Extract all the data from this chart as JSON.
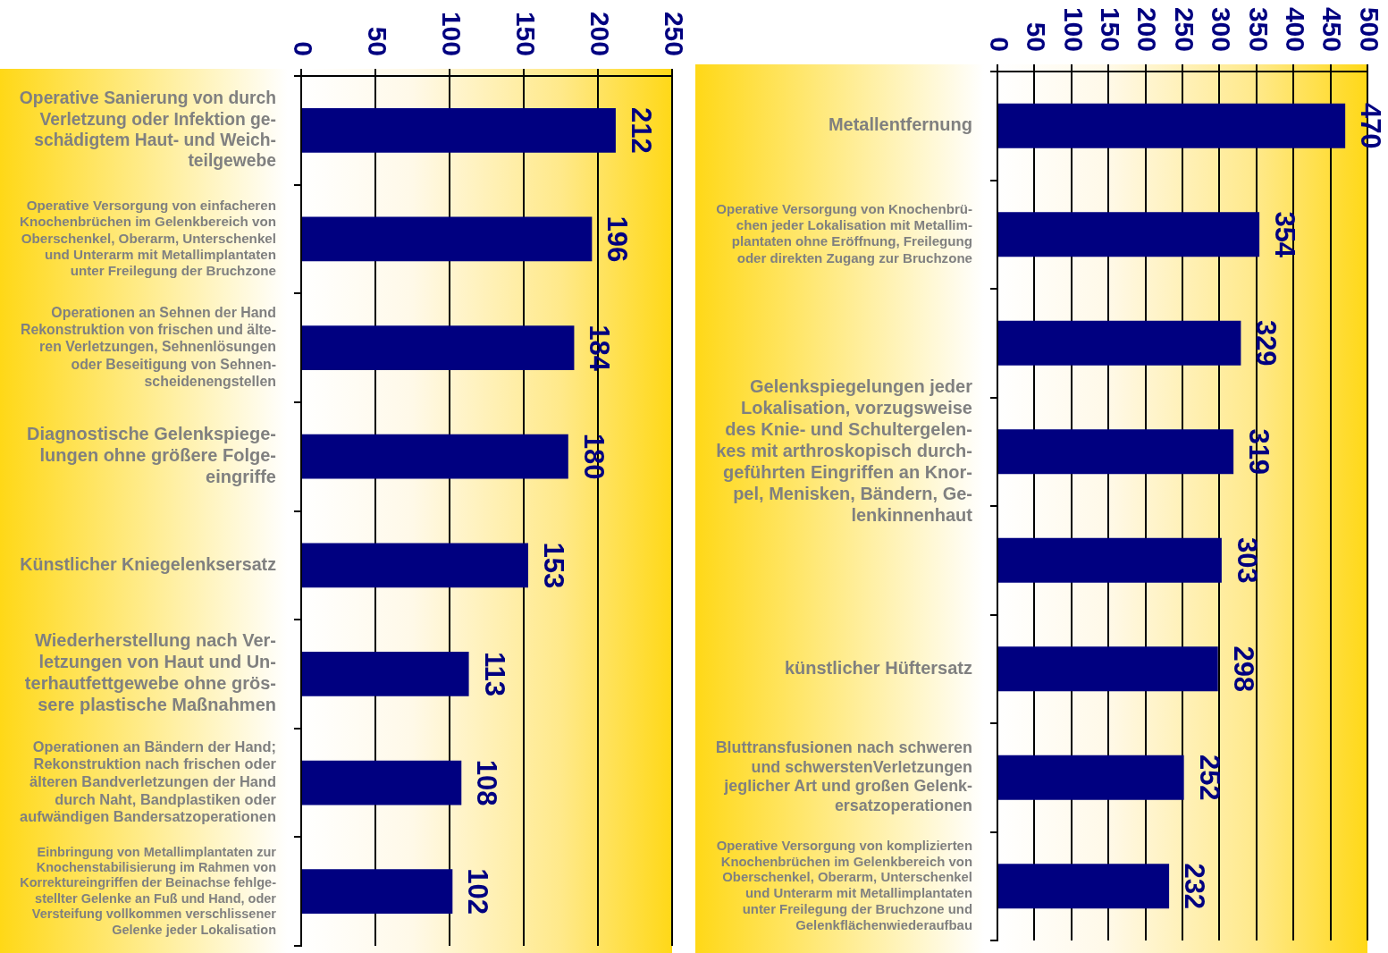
{
  "chart_data": [
    {
      "type": "bar",
      "orientation": "horizontal",
      "categories": [
        "Operative Sanierung von durch\nVerletzung oder Infektion ge-\nschädigtem Haut- und Weich-\nteilgewebe",
        "Operative Versorgung von einfacheren\nKnochenbrüchen im Gelenkbereich von\nOberschenkel, Oberarm, Unterschenkel\nund Unterarm mit Metallimplantaten\nunter Freilegung der Bruchzone",
        "Operationen an Sehnen der Hand\nRekonstruktion von frischen und älte-\nren Verletzungen, Sehnenlösungen\noder Beseitigung von Sehnen-\nscheidenengstellen",
        "Diagnostische Gelenkspiege-\nlungen ohne größere Folge-\neingriffe",
        "Künstlicher Kniegelenksersatz",
        "Wiederherstellung nach Ver-\nletzungen von Haut und Un-\nterhautfettgewebe ohne grös-\nsere plastische Maßnahmen",
        "Operationen an Bändern der Hand;\nRekonstruktion nach frischen oder\nälteren Bandverletzungen der Hand\ndurch Naht, Bandplastiken oder\naufwändigen Bandersatzoperationen",
        "Einbringung von Metallimplantaten zur\nKnochenstabilisierung im Rahmen von\nKorrektureingriffen der Beinachse fehlge-\nstellter Gelenke an Fuß und Hand, oder\nVersteifung vollkommen verschlissener\nGelenke jeder Lokalisation"
      ],
      "values": [
        212,
        196,
        184,
        180,
        153,
        113,
        108,
        102
      ],
      "color": "#000080",
      "xlim": [
        0,
        250
      ],
      "xticks": [
        0,
        50,
        100,
        150,
        200,
        250
      ],
      "grid": "x",
      "data_labels": true
    },
    {
      "type": "bar",
      "orientation": "horizontal",
      "categories": [
        "Metallentfernung",
        "Operative Versorgung von Knochenbrü-\nchen jeder Lokalisation mit Metallim-\nplantaten ohne Eröffnung, Freilegung\noder direkten Zugang zur Bruchzone",
        null,
        "Gelenkspiegelungen jeder\nLokalisation, vorzugsweise\ndes Knie- und Schultergelen-\nkes mit arthroskopisch durch-\ngeführten Eingriffen an Knor-\npel, Menisken, Bändern, Ge-\nlenkinnenhaut",
        null,
        "künstlicher Hüftersatz",
        "Bluttransfusionen nach schweren\nund schwerstenVerletzungen\njeglicher Art und großen Gelenk-\nersatzoperationen",
        "Operative Versorgung von komplizierten\nKnochenbrüchen im Gelenkbereich von\nOberschenkel, Oberarm, Unterschenkel\nund Unterarm mit Metallimplantaten\nunter Freilegung der Bruchzone und\nGelenkflächenwiederaufbau"
      ],
      "values": [
        470,
        354,
        329,
        319,
        303,
        298,
        252,
        232
      ],
      "color": "#000080",
      "xlim": [
        0,
        500
      ],
      "xticks": [
        0,
        50,
        100,
        150,
        200,
        250,
        300,
        350,
        400,
        450,
        500
      ],
      "grid": "x",
      "data_labels": true
    }
  ]
}
